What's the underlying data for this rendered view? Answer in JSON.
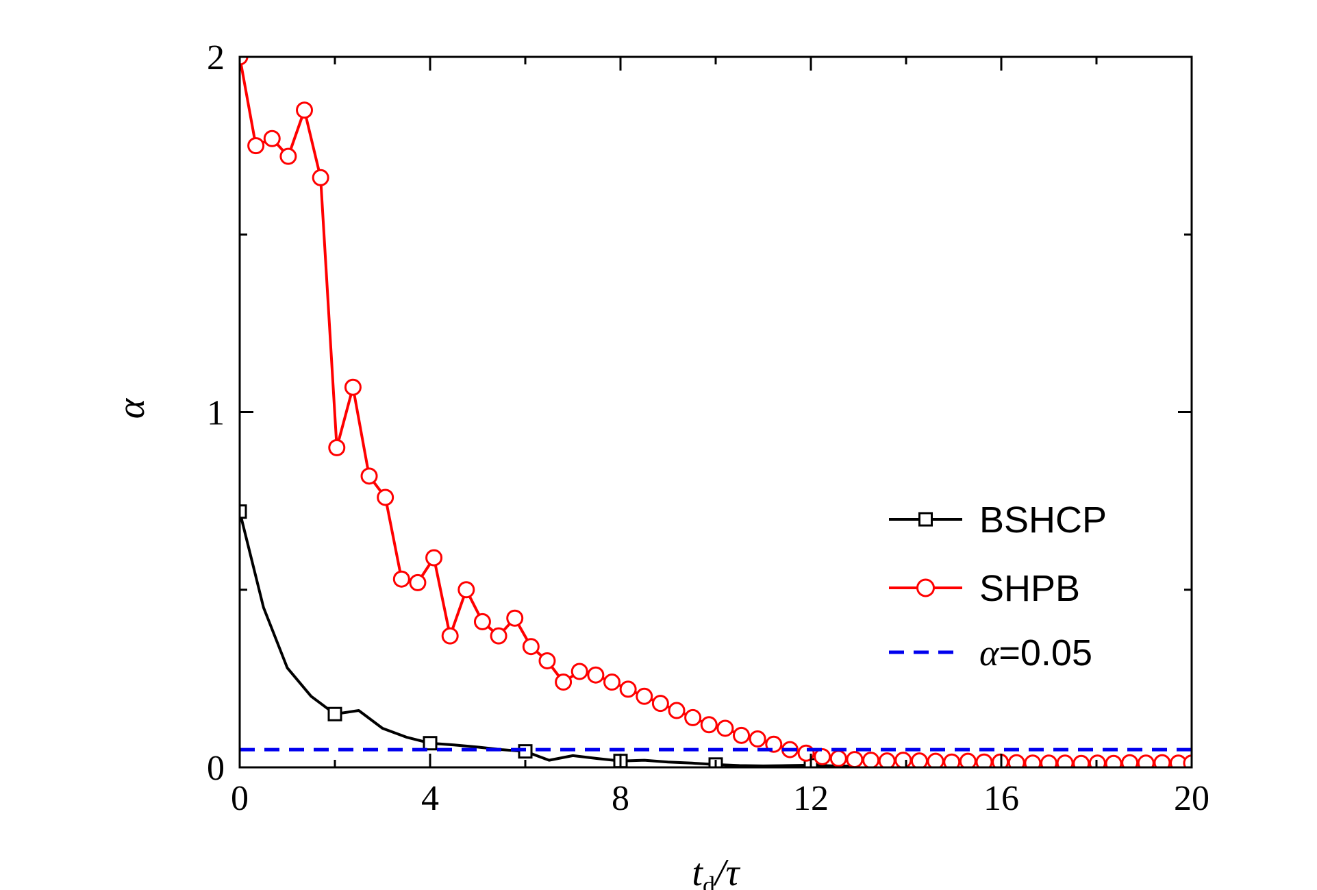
{
  "chart_data": {
    "type": "line",
    "xlabel": "t",
    "xlabel_sub": "d",
    "xlabel_suffix": "/τ",
    "ylabel": "α",
    "xlim": [
      0,
      20
    ],
    "ylim": [
      0,
      2
    ],
    "xticks": [
      0,
      4,
      8,
      12,
      16,
      20
    ],
    "xtick_labels": [
      "0",
      "4",
      "8",
      "12",
      "16",
      "20"
    ],
    "yticks": [
      0,
      1,
      2
    ],
    "ytick_labels": [
      "0",
      "1",
      "2"
    ],
    "y_minor_ticks": [
      0.5,
      1.5
    ],
    "x_minor_ticks": [
      2,
      6,
      10,
      14,
      18
    ],
    "grid": false,
    "legend_position": "right",
    "series": [
      {
        "name": "BSHCP",
        "color": "#000000",
        "marker": "square",
        "x": [
          0,
          0.5,
          1,
          1.5,
          2,
          2.5,
          3,
          3.5,
          4,
          4.5,
          5,
          5.5,
          6,
          6.5,
          7,
          7.5,
          8,
          8.5,
          9,
          9.5,
          10,
          10.5,
          11,
          11.5,
          12,
          12.5,
          13
        ],
        "values": [
          0.72,
          0.45,
          0.28,
          0.2,
          0.15,
          0.16,
          0.11,
          0.085,
          0.068,
          0.063,
          0.057,
          0.05,
          0.045,
          0.02,
          0.033,
          0.025,
          0.018,
          0.02,
          0.015,
          0.012,
          0.008,
          0.005,
          0.004,
          0.005,
          0.006,
          0.004,
          0.003
        ],
        "marker_x": [
          0,
          2,
          4,
          6,
          8,
          10,
          12
        ]
      },
      {
        "name": "SHPB",
        "color": "#ff0000",
        "marker": "circle",
        "x": [
          0,
          0.34,
          0.68,
          1.02,
          1.36,
          1.7,
          2.04,
          2.38,
          2.72,
          3.06,
          3.4,
          3.74,
          4.08,
          4.42,
          4.76,
          5.1,
          5.44,
          5.78,
          6.12,
          6.46,
          6.8,
          7.14,
          7.48,
          7.82,
          8.16,
          8.5,
          8.84,
          9.18,
          9.52,
          9.86,
          10.2,
          10.54,
          10.88,
          11.22,
          11.56,
          11.9,
          12.24,
          12.58,
          12.92,
          13.26,
          13.6,
          13.94,
          14.28,
          14.62,
          14.96,
          15.3,
          15.64,
          15.98,
          16.32,
          16.66,
          17.0,
          17.34,
          17.68,
          18.02,
          18.36,
          18.7,
          19.04,
          19.38,
          19.72,
          20.0
        ],
        "values": [
          2.0,
          1.75,
          1.77,
          1.72,
          1.85,
          1.66,
          0.9,
          1.07,
          0.82,
          0.76,
          0.53,
          0.52,
          0.59,
          0.37,
          0.5,
          0.41,
          0.37,
          0.42,
          0.34,
          0.3,
          0.24,
          0.27,
          0.26,
          0.24,
          0.22,
          0.2,
          0.18,
          0.16,
          0.14,
          0.12,
          0.11,
          0.09,
          0.08,
          0.065,
          0.05,
          0.04,
          0.03,
          0.025,
          0.022,
          0.02,
          0.018,
          0.02,
          0.018,
          0.017,
          0.015,
          0.017,
          0.015,
          0.015,
          0.013,
          0.012,
          0.012,
          0.012,
          0.011,
          0.012,
          0.011,
          0.013,
          0.012,
          0.013,
          0.012,
          0.012
        ]
      },
      {
        "name": "α=0.05",
        "color": "#0000ee",
        "style": "dashed",
        "x": [
          0,
          20
        ],
        "values": [
          0.05,
          0.05
        ]
      }
    ],
    "legend": [
      {
        "label": "BSHCP",
        "is_alpha": false
      },
      {
        "label": "SHPB",
        "is_alpha": false
      },
      {
        "label_alpha": "α",
        "label_rest": "=0.05",
        "is_alpha": true
      }
    ]
  }
}
